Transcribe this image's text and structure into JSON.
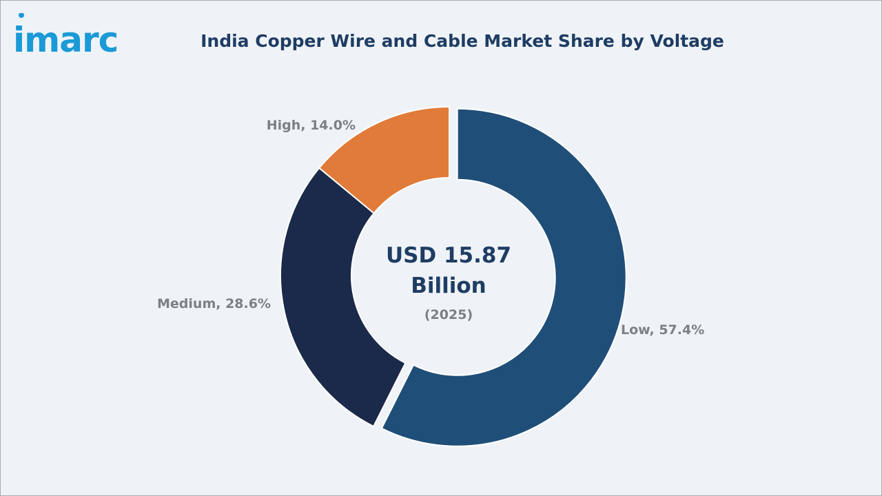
{
  "brand": {
    "name": "imarc",
    "color": "#1a9ad6"
  },
  "chart_data": {
    "type": "pie",
    "title": "India Copper Wire and Cable Market Share by Voltage",
    "center": {
      "value": "USD 15.87",
      "unit": "Billion",
      "year": "(2025)"
    },
    "slices": [
      {
        "label": "Low",
        "value": 57.4,
        "display": "Low, 57.4%",
        "color": "#1f4e79"
      },
      {
        "label": "Medium",
        "value": 28.6,
        "display": "Medium, 28.6%",
        "color": "#1b2a4a"
      },
      {
        "label": "High",
        "value": 14.0,
        "display": "High, 14.0%",
        "color": "#e07b39"
      }
    ],
    "legend": "none"
  }
}
